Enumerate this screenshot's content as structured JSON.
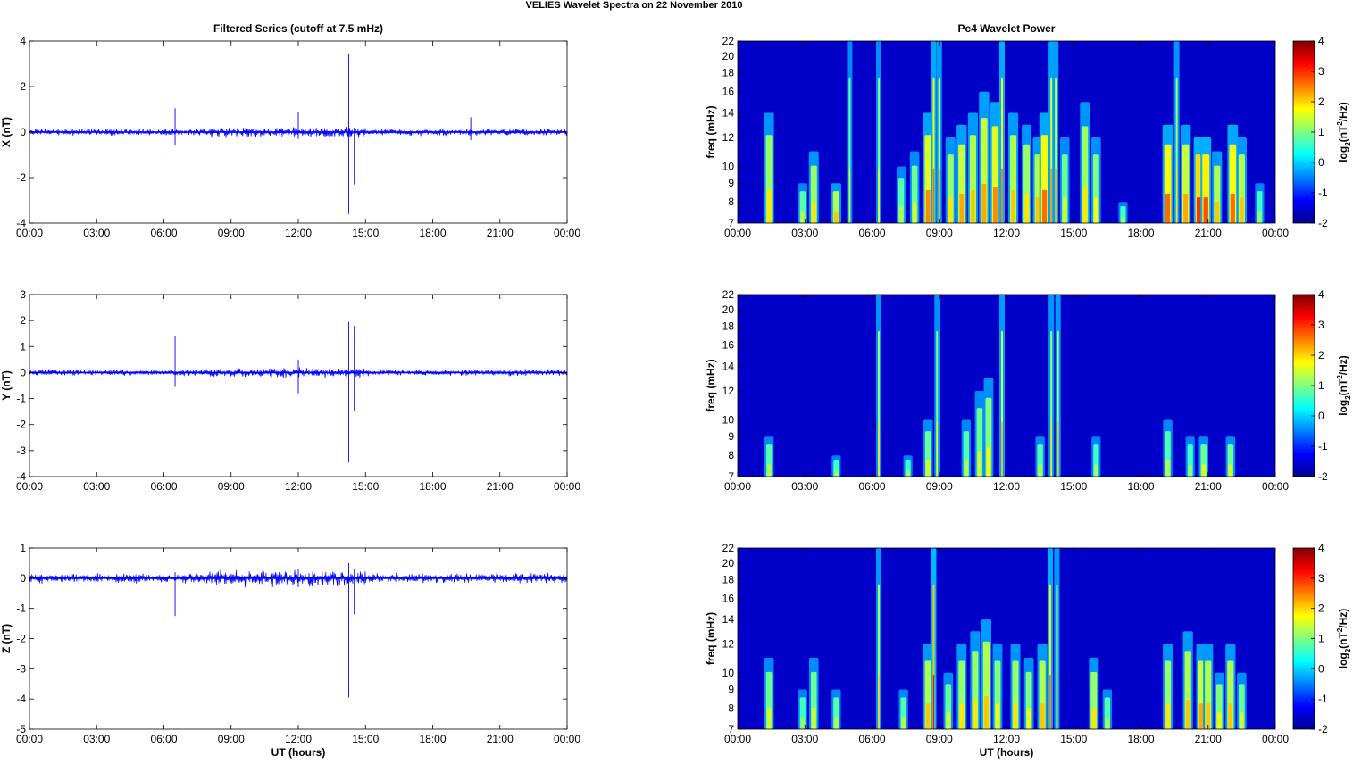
{
  "figure": {
    "title": "VELIES Wavelet Spectra on 22 November  2010"
  },
  "chart_data": [
    {
      "type": "line",
      "title": "Filtered Series (cutoff at 7.5 mHz)",
      "xlabel": "",
      "ylabel": "X (nT)",
      "ylim": [
        -4,
        4
      ],
      "yticks": [
        "4",
        "2",
        "0",
        "-2",
        "-4"
      ],
      "xlim": [
        0,
        24
      ],
      "xticks": [
        "00:00",
        "03:00",
        "06:00",
        "09:00",
        "12:00",
        "15:00",
        "18:00",
        "21:00",
        "00:00"
      ],
      "series_color": "#0000ff",
      "noise_amplitude": 0.06,
      "spikes": [
        {
          "t": 6.5,
          "lo": -0.6,
          "hi": 1.05
        },
        {
          "t": 8.95,
          "lo": -3.7,
          "hi": 3.45
        },
        {
          "t": 12.0,
          "lo": -0.3,
          "hi": 0.9
        },
        {
          "t": 14.25,
          "lo": -3.6,
          "hi": 3.45
        },
        {
          "t": 14.5,
          "lo": -2.3,
          "hi": 0.2
        },
        {
          "t": 19.7,
          "lo": -0.35,
          "hi": 0.65
        }
      ]
    },
    {
      "type": "heatmap",
      "title": "Pc4 Wavelet Power",
      "xlabel": "",
      "ylabel": "freq (mHz)",
      "yscale": "log",
      "ylim": [
        7,
        22
      ],
      "yticks": [
        "22",
        "20",
        "18",
        "16",
        "14",
        "12",
        "10",
        "9",
        "8",
        "7"
      ],
      "xlim": [
        0,
        24
      ],
      "xticks": [
        "00:00",
        "03:00",
        "06:00",
        "09:00",
        "12:00",
        "15:00",
        "18:00",
        "21:00",
        "00:00"
      ],
      "colorbar": {
        "label_base": "log",
        "label_sub": "2",
        "label_mid": "(nT",
        "label_sup": "2",
        "label_end": "/Hz)",
        "ticks": [
          "4",
          "3",
          "2",
          "1",
          "0",
          "-1",
          "-2"
        ],
        "range": [
          -2,
          4
        ]
      },
      "streaks": [
        {
          "t": 1.4,
          "f": 14,
          "p": 0.5
        },
        {
          "t": 2.9,
          "f": 9,
          "p": 0.35
        },
        {
          "t": 3.4,
          "f": 11,
          "p": 0.5
        },
        {
          "t": 4.4,
          "f": 9,
          "p": 0.55
        },
        {
          "t": 5.0,
          "f": 22,
          "p": 0.4
        },
        {
          "t": 6.3,
          "f": 22,
          "p": 0.45
        },
        {
          "t": 7.3,
          "f": 10,
          "p": 0.35
        },
        {
          "t": 7.9,
          "f": 11,
          "p": 0.4
        },
        {
          "t": 8.5,
          "f": 14,
          "p": 0.65
        },
        {
          "t": 8.75,
          "f": 22,
          "p": 0.7
        },
        {
          "t": 9.0,
          "f": 22,
          "p": 0.6
        },
        {
          "t": 9.5,
          "f": 12,
          "p": 0.5
        },
        {
          "t": 10.0,
          "f": 13,
          "p": 0.6
        },
        {
          "t": 10.5,
          "f": 14,
          "p": 0.55
        },
        {
          "t": 11.0,
          "f": 16,
          "p": 0.6
        },
        {
          "t": 11.5,
          "f": 15,
          "p": 0.65
        },
        {
          "t": 11.8,
          "f": 22,
          "p": 0.75
        },
        {
          "t": 12.3,
          "f": 14,
          "p": 0.55
        },
        {
          "t": 12.9,
          "f": 13,
          "p": 0.5
        },
        {
          "t": 13.4,
          "f": 12,
          "p": 0.55
        },
        {
          "t": 13.7,
          "f": 14,
          "p": 0.7
        },
        {
          "t": 14.0,
          "f": 22,
          "p": 0.65
        },
        {
          "t": 14.2,
          "f": 22,
          "p": 0.6
        },
        {
          "t": 14.6,
          "f": 12,
          "p": 0.4
        },
        {
          "t": 15.5,
          "f": 15,
          "p": 0.5
        },
        {
          "t": 16.0,
          "f": 12,
          "p": 0.45
        },
        {
          "t": 17.2,
          "f": 8,
          "p": 0.3
        },
        {
          "t": 19.2,
          "f": 13,
          "p": 0.7
        },
        {
          "t": 19.6,
          "f": 22,
          "p": 0.5
        },
        {
          "t": 20.0,
          "f": 13,
          "p": 0.6
        },
        {
          "t": 20.6,
          "f": 12,
          "p": 0.8
        },
        {
          "t": 20.9,
          "f": 12,
          "p": 0.75
        },
        {
          "t": 21.4,
          "f": 11,
          "p": 0.55
        },
        {
          "t": 22.1,
          "f": 13,
          "p": 0.7
        },
        {
          "t": 22.5,
          "f": 12,
          "p": 0.55
        },
        {
          "t": 23.3,
          "f": 9,
          "p": 0.3
        }
      ]
    },
    {
      "type": "line",
      "title": "",
      "xlabel": "",
      "ylabel": "Y (nT)",
      "ylim": [
        -4,
        3
      ],
      "yticks": [
        "3",
        "2",
        "1",
        "0",
        "-1",
        "-2",
        "-3",
        "-4"
      ],
      "xlim": [
        0,
        24
      ],
      "xticks": [
        "00:00",
        "03:00",
        "06:00",
        "09:00",
        "12:00",
        "15:00",
        "18:00",
        "21:00",
        "00:00"
      ],
      "series_color": "#0000ff",
      "noise_amplitude": 0.05,
      "spikes": [
        {
          "t": 6.5,
          "lo": -0.55,
          "hi": 1.4
        },
        {
          "t": 8.95,
          "lo": -3.55,
          "hi": 2.2
        },
        {
          "t": 12.0,
          "lo": -0.8,
          "hi": 0.5
        },
        {
          "t": 14.25,
          "lo": -3.45,
          "hi": 1.95
        },
        {
          "t": 14.5,
          "lo": -1.5,
          "hi": 1.8
        }
      ]
    },
    {
      "type": "heatmap",
      "title": "",
      "xlabel": "",
      "ylabel": "freq (mHz)",
      "yscale": "log",
      "ylim": [
        7,
        22
      ],
      "yticks": [
        "22",
        "20",
        "18",
        "16",
        "14",
        "12",
        "10",
        "9",
        "8",
        "7"
      ],
      "xlim": [
        0,
        24
      ],
      "xticks": [
        "00:00",
        "03:00",
        "06:00",
        "09:00",
        "12:00",
        "15:00",
        "18:00",
        "21:00",
        "00:00"
      ],
      "colorbar": {
        "label_base": "log",
        "label_sub": "2",
        "label_mid": "(nT",
        "label_sup": "2",
        "label_end": "/Hz)",
        "ticks": [
          "4",
          "3",
          "2",
          "1",
          "0",
          "-1",
          "-2"
        ],
        "range": [
          -2,
          4
        ]
      },
      "streaks": [
        {
          "t": 1.4,
          "f": 9,
          "p": 0.35
        },
        {
          "t": 4.4,
          "f": 8,
          "p": 0.3
        },
        {
          "t": 6.3,
          "f": 22,
          "p": 0.5
        },
        {
          "t": 7.6,
          "f": 8,
          "p": 0.3
        },
        {
          "t": 8.5,
          "f": 10,
          "p": 0.4
        },
        {
          "t": 8.9,
          "f": 22,
          "p": 0.45
        },
        {
          "t": 10.2,
          "f": 10,
          "p": 0.35
        },
        {
          "t": 10.8,
          "f": 12,
          "p": 0.4
        },
        {
          "t": 11.2,
          "f": 13,
          "p": 0.45
        },
        {
          "t": 11.8,
          "f": 22,
          "p": 0.6
        },
        {
          "t": 13.5,
          "f": 9,
          "p": 0.35
        },
        {
          "t": 14.0,
          "f": 22,
          "p": 0.5
        },
        {
          "t": 14.3,
          "f": 22,
          "p": 0.55
        },
        {
          "t": 16.0,
          "f": 9,
          "p": 0.3
        },
        {
          "t": 19.2,
          "f": 10,
          "p": 0.35
        },
        {
          "t": 20.2,
          "f": 9,
          "p": 0.3
        },
        {
          "t": 20.8,
          "f": 9,
          "p": 0.4
        },
        {
          "t": 22.0,
          "f": 9,
          "p": 0.4
        }
      ]
    },
    {
      "type": "line",
      "title": "",
      "xlabel": "UT (hours)",
      "ylabel": "Z (nT)",
      "ylim": [
        -5,
        1
      ],
      "yticks": [
        "1",
        "0",
        "-1",
        "-2",
        "-3",
        "-4",
        "-5"
      ],
      "xlim": [
        0,
        24
      ],
      "xticks": [
        "00:00",
        "03:00",
        "06:00",
        "09:00",
        "12:00",
        "15:00",
        "18:00",
        "21:00",
        "00:00"
      ],
      "series_color": "#0000ff",
      "noise_amplitude": 0.07,
      "spikes": [
        {
          "t": 6.5,
          "lo": -1.25,
          "hi": 0.2
        },
        {
          "t": 8.95,
          "lo": -4.0,
          "hi": 0.4
        },
        {
          "t": 12.0,
          "lo": -0.3,
          "hi": 0.3
        },
        {
          "t": 14.25,
          "lo": -3.95,
          "hi": 0.5
        },
        {
          "t": 14.5,
          "lo": -1.2,
          "hi": 0.3
        }
      ]
    },
    {
      "type": "heatmap",
      "title": "",
      "xlabel": "UT (hours)",
      "ylabel": "freq (mHz)",
      "yscale": "log",
      "ylim": [
        7,
        22
      ],
      "yticks": [
        "22",
        "20",
        "18",
        "16",
        "14",
        "12",
        "10",
        "9",
        "8",
        "7"
      ],
      "xlim": [
        0,
        24
      ],
      "xticks": [
        "00:00",
        "03:00",
        "06:00",
        "09:00",
        "12:00",
        "15:00",
        "18:00",
        "21:00",
        "00:00"
      ],
      "colorbar": {
        "label_base": "log",
        "label_sub": "2",
        "label_mid": "(nT",
        "label_sup": "2",
        "label_end": "/Hz)",
        "ticks": [
          "4",
          "3",
          "2",
          "1",
          "0",
          "-1",
          "-2"
        ],
        "range": [
          -2,
          4
        ]
      },
      "streaks": [
        {
          "t": 1.4,
          "f": 11,
          "p": 0.4
        },
        {
          "t": 2.9,
          "f": 9,
          "p": 0.3
        },
        {
          "t": 3.4,
          "f": 11,
          "p": 0.4
        },
        {
          "t": 4.4,
          "f": 9,
          "p": 0.35
        },
        {
          "t": 6.3,
          "f": 22,
          "p": 0.55
        },
        {
          "t": 7.4,
          "f": 9,
          "p": 0.35
        },
        {
          "t": 8.5,
          "f": 12,
          "p": 0.55
        },
        {
          "t": 8.75,
          "f": 22,
          "p": 0.85
        },
        {
          "t": 9.4,
          "f": 10,
          "p": 0.4
        },
        {
          "t": 10.0,
          "f": 12,
          "p": 0.5
        },
        {
          "t": 10.6,
          "f": 13,
          "p": 0.5
        },
        {
          "t": 11.1,
          "f": 14,
          "p": 0.55
        },
        {
          "t": 11.6,
          "f": 12,
          "p": 0.45
        },
        {
          "t": 12.4,
          "f": 12,
          "p": 0.5
        },
        {
          "t": 13.0,
          "f": 11,
          "p": 0.45
        },
        {
          "t": 13.6,
          "f": 12,
          "p": 0.55
        },
        {
          "t": 13.95,
          "f": 22,
          "p": 0.75
        },
        {
          "t": 14.25,
          "f": 22,
          "p": 0.55
        },
        {
          "t": 15.9,
          "f": 11,
          "p": 0.5
        },
        {
          "t": 16.5,
          "f": 9,
          "p": 0.35
        },
        {
          "t": 19.2,
          "f": 12,
          "p": 0.5
        },
        {
          "t": 20.1,
          "f": 13,
          "p": 0.55
        },
        {
          "t": 20.7,
          "f": 12,
          "p": 0.6
        },
        {
          "t": 21.0,
          "f": 12,
          "p": 0.55
        },
        {
          "t": 21.5,
          "f": 10,
          "p": 0.45
        },
        {
          "t": 22.0,
          "f": 12,
          "p": 0.55
        },
        {
          "t": 22.5,
          "f": 10,
          "p": 0.4
        }
      ]
    }
  ]
}
